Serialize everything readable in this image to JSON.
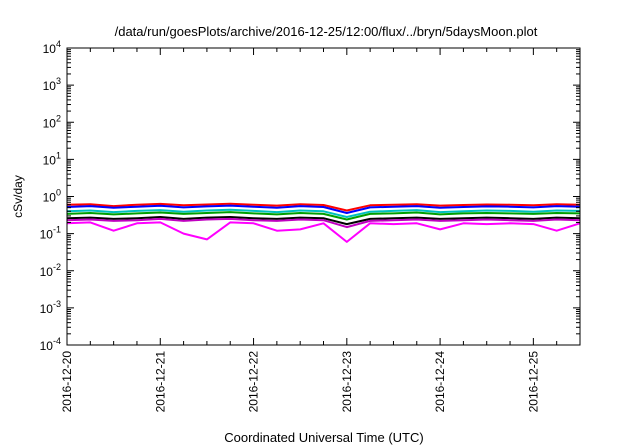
{
  "chart_data": {
    "type": "line",
    "title": "/data/run/goesPlots/archive/2016-12-25/12:00/flux/../bryn/5daysMoon.plot",
    "xlabel": "Coordinated Universal Time (UTC)",
    "ylabel": "cSv/day",
    "yscale": "log",
    "ylim": [
      0.0001,
      10000
    ],
    "xlim": [
      "2016-12-20T00:00",
      "2016-12-25T12:00"
    ],
    "grid": false,
    "legend": "none",
    "y_ticks": [
      {
        "base": "10",
        "exp": "-4"
      },
      {
        "base": "10",
        "exp": "-3"
      },
      {
        "base": "10",
        "exp": "-2"
      },
      {
        "base": "10",
        "exp": "-1"
      },
      {
        "base": "10",
        "exp": "0"
      },
      {
        "base": "10",
        "exp": "1"
      },
      {
        "base": "10",
        "exp": "2"
      },
      {
        "base": "10",
        "exp": "3"
      },
      {
        "base": "10",
        "exp": "4"
      }
    ],
    "x_ticks": [
      "2016-12-20",
      "2016-12-21",
      "2016-12-22",
      "2016-12-23",
      "2016-12-24",
      "2016-12-25"
    ],
    "x": [
      "2016-12-20T00:00",
      "2016-12-20T06:00",
      "2016-12-20T12:00",
      "2016-12-20T18:00",
      "2016-12-21T00:00",
      "2016-12-21T06:00",
      "2016-12-21T12:00",
      "2016-12-21T18:00",
      "2016-12-22T00:00",
      "2016-12-22T06:00",
      "2016-12-22T12:00",
      "2016-12-22T18:00",
      "2016-12-23T00:00",
      "2016-12-23T06:00",
      "2016-12-23T12:00",
      "2016-12-23T18:00",
      "2016-12-24T00:00",
      "2016-12-24T06:00",
      "2016-12-24T12:00",
      "2016-12-24T18:00",
      "2016-12-25T00:00",
      "2016-12-25T06:00",
      "2016-12-25T12:00"
    ],
    "series": [
      {
        "color": "#ff0000",
        "values": [
          0.6,
          0.62,
          0.55,
          0.6,
          0.63,
          0.58,
          0.61,
          0.64,
          0.6,
          0.57,
          0.62,
          0.59,
          0.42,
          0.58,
          0.6,
          0.62,
          0.57,
          0.59,
          0.61,
          0.6,
          0.58,
          0.62,
          0.6
        ]
      },
      {
        "color": "#0000ff",
        "values": [
          0.52,
          0.55,
          0.5,
          0.53,
          0.56,
          0.51,
          0.54,
          0.57,
          0.53,
          0.5,
          0.55,
          0.52,
          0.36,
          0.51,
          0.53,
          0.55,
          0.5,
          0.52,
          0.54,
          0.53,
          0.51,
          0.55,
          0.53
        ]
      },
      {
        "color": "#00c0c0",
        "values": [
          0.4,
          0.42,
          0.38,
          0.41,
          0.43,
          0.39,
          0.42,
          0.44,
          0.41,
          0.38,
          0.42,
          0.4,
          0.28,
          0.39,
          0.41,
          0.43,
          0.38,
          0.4,
          0.42,
          0.41,
          0.39,
          0.42,
          0.41
        ]
      },
      {
        "color": "#00a000",
        "values": [
          0.34,
          0.36,
          0.33,
          0.35,
          0.37,
          0.34,
          0.36,
          0.38,
          0.35,
          0.33,
          0.36,
          0.34,
          0.24,
          0.34,
          0.35,
          0.37,
          0.33,
          0.35,
          0.36,
          0.35,
          0.34,
          0.36,
          0.35
        ]
      },
      {
        "color": "#000000",
        "values": [
          0.26,
          0.27,
          0.25,
          0.26,
          0.28,
          0.25,
          0.27,
          0.28,
          0.26,
          0.25,
          0.27,
          0.26,
          0.18,
          0.25,
          0.26,
          0.27,
          0.25,
          0.26,
          0.27,
          0.26,
          0.25,
          0.27,
          0.26
        ]
      },
      {
        "color": "#c000c0",
        "values": [
          0.23,
          0.24,
          0.22,
          0.23,
          0.25,
          0.22,
          0.24,
          0.25,
          0.23,
          0.22,
          0.24,
          0.23,
          0.15,
          0.22,
          0.23,
          0.24,
          0.22,
          0.23,
          0.24,
          0.23,
          0.22,
          0.24,
          0.23
        ]
      },
      {
        "color": "#ff00ff",
        "values": [
          0.19,
          0.2,
          0.12,
          0.19,
          0.2,
          0.1,
          0.07,
          0.2,
          0.19,
          0.12,
          0.13,
          0.19,
          0.06,
          0.19,
          0.18,
          0.19,
          0.13,
          0.19,
          0.18,
          0.19,
          0.18,
          0.12,
          0.19
        ]
      }
    ]
  }
}
